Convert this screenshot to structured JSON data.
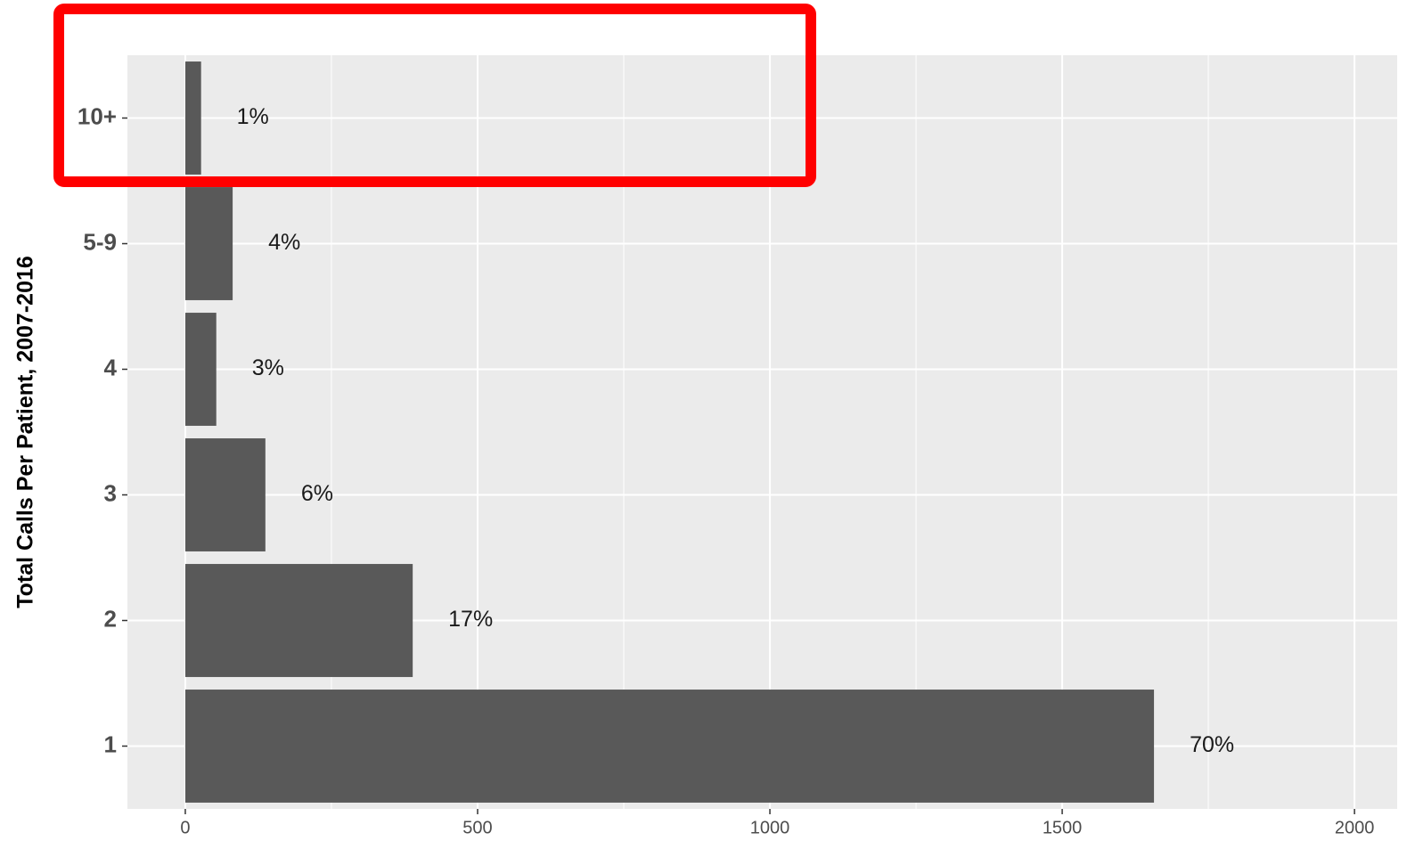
{
  "chart_data": {
    "type": "bar",
    "orientation": "horizontal",
    "y_label": "Total Calls Per Patient, 2007-2016",
    "categories": [
      "1",
      "2",
      "3",
      "4",
      "5-9",
      "10+"
    ],
    "values": [
      1657,
      389,
      137,
      53,
      81,
      27
    ],
    "annotations": [
      "70%",
      "17%",
      "6%",
      "3%",
      "4%",
      "1%"
    ],
    "color": "#595959",
    "xlim": [
      -99,
      2073
    ],
    "xticks": [
      0,
      500,
      1000,
      1500,
      2000
    ],
    "grid": true
  }
}
